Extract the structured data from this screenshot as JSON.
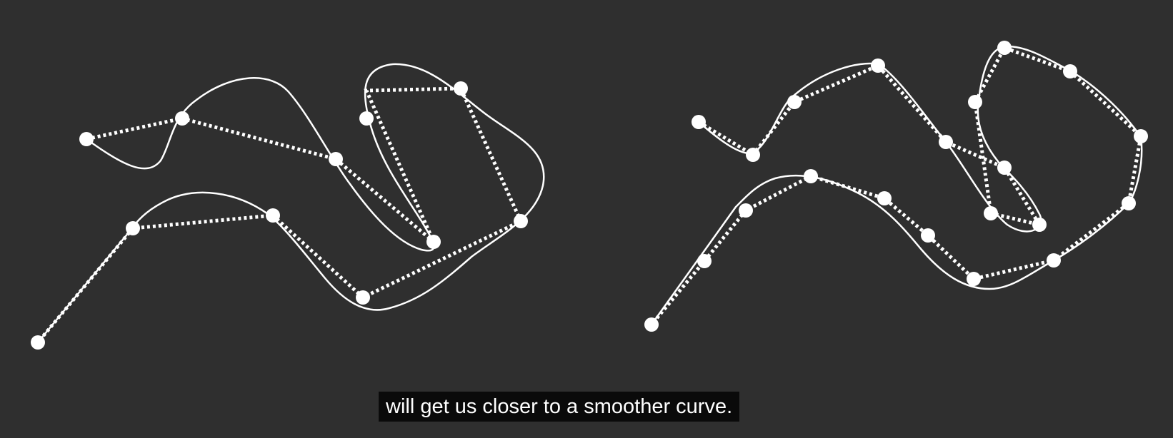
{
  "caption": {
    "text": "will get us closer to a smoother curve."
  },
  "colors": {
    "background": "#2f2f2f",
    "stroke": "#ffffff",
    "caption_background": "#0a0a0a",
    "caption_text": "#ffffff"
  },
  "panels": [
    {
      "id": "left",
      "description": "coarse control polygon with smooth curve",
      "point_count": 10
    },
    {
      "id": "right",
      "description": "refined control polygon closer to smooth curve",
      "point_count": 20
    }
  ]
}
